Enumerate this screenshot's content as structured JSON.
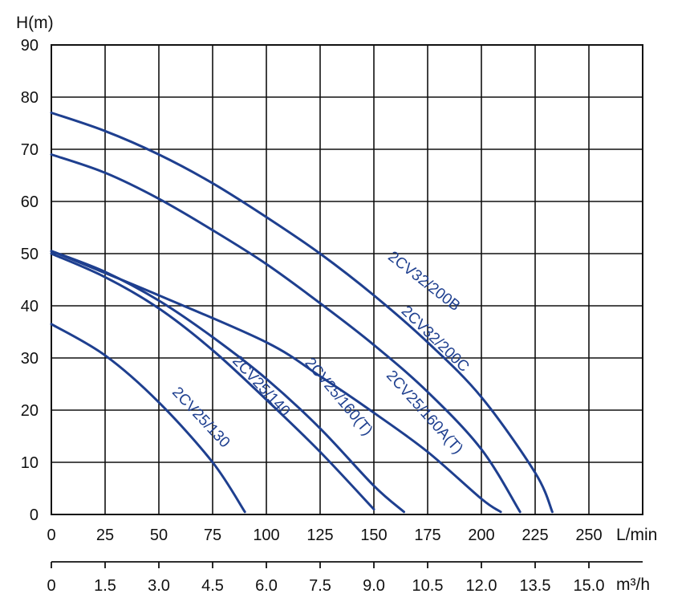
{
  "chart_data": {
    "type": "line",
    "title": "",
    "ylabel": "H(m)",
    "xlabel": "L/min",
    "x2label": "m³/h",
    "xlim": [
      0,
      275
    ],
    "ylim": [
      0,
      90
    ],
    "x_ticks": [
      0,
      25,
      50,
      75,
      100,
      125,
      150,
      175,
      200,
      225,
      250
    ],
    "y_ticks": [
      0,
      10,
      20,
      30,
      40,
      50,
      60,
      70,
      80,
      90
    ],
    "x2_ticks": [
      "0",
      "1.5",
      "3.0",
      "4.5",
      "6.0",
      "7.5",
      "9.0",
      "10.5",
      "12.0",
      "13.5",
      "15.0"
    ],
    "grid": true,
    "line_color": "#1e3f8f",
    "series": [
      {
        "name": "2CV25/130",
        "points": [
          [
            0,
            36.5
          ],
          [
            25,
            30.5
          ],
          [
            50,
            21.5
          ],
          [
            75,
            10
          ],
          [
            90,
            0.5
          ]
        ]
      },
      {
        "name": "2CV25/140",
        "points": [
          [
            0,
            50
          ],
          [
            25,
            45.5
          ],
          [
            50,
            39.5
          ],
          [
            75,
            31.5
          ],
          [
            100,
            22
          ],
          [
            125,
            12
          ],
          [
            150,
            1
          ]
        ]
      },
      {
        "name": "2CV25/160(T)",
        "points": [
          [
            0,
            50.5
          ],
          [
            25,
            46.5
          ],
          [
            50,
            41
          ],
          [
            75,
            34
          ],
          [
            100,
            26
          ],
          [
            125,
            16.5
          ],
          [
            150,
            5.5
          ],
          [
            164,
            0.5
          ]
        ]
      },
      {
        "name": "2CV25/160A(T)",
        "points": [
          [
            0,
            50.5
          ],
          [
            50,
            42
          ],
          [
            100,
            33
          ],
          [
            125,
            26.5
          ],
          [
            150,
            19.5
          ],
          [
            175,
            12
          ],
          [
            200,
            3
          ],
          [
            209,
            0.5
          ]
        ]
      },
      {
        "name": "2CV32/200C",
        "points": [
          [
            0,
            69
          ],
          [
            25,
            65.5
          ],
          [
            50,
            60.5
          ],
          [
            75,
            54.5
          ],
          [
            100,
            48
          ],
          [
            125,
            40.5
          ],
          [
            150,
            32.5
          ],
          [
            175,
            23.5
          ],
          [
            200,
            12.5
          ],
          [
            218,
            0.5
          ]
        ]
      },
      {
        "name": "2CV32/200B",
        "points": [
          [
            0,
            77
          ],
          [
            25,
            73.5
          ],
          [
            50,
            69
          ],
          [
            75,
            63.5
          ],
          [
            100,
            57
          ],
          [
            125,
            50
          ],
          [
            150,
            42
          ],
          [
            175,
            33
          ],
          [
            200,
            22.5
          ],
          [
            225,
            8
          ],
          [
            233,
            0.5
          ]
        ]
      }
    ]
  }
}
